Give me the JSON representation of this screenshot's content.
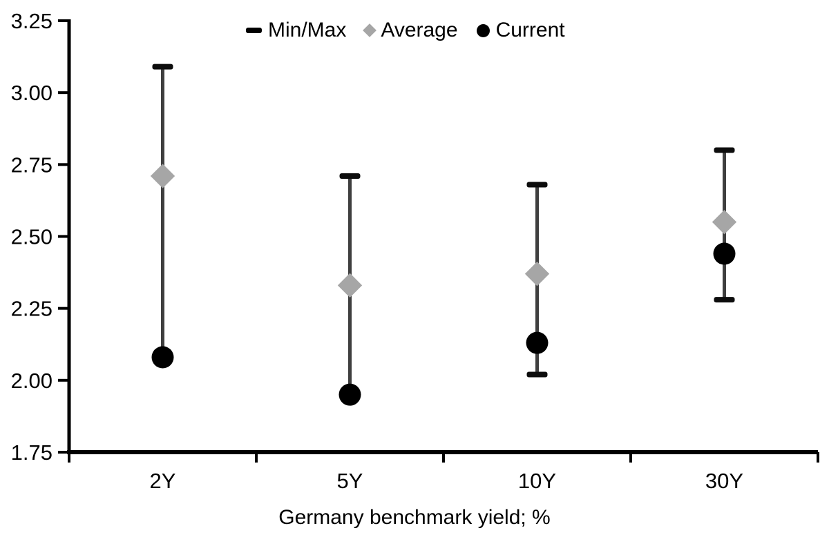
{
  "chart_data": {
    "type": "scatter",
    "variant": "min-max-range-with-markers",
    "title": "",
    "xlabel": "Germany benchmark yield; %",
    "ylabel": "",
    "categories": [
      "2Y",
      "5Y",
      "10Y",
      "30Y"
    ],
    "ylim": [
      1.75,
      3.25
    ],
    "y_ticks": [
      "3.25",
      "3.00",
      "2.75",
      "2.50",
      "2.25",
      "2.00",
      "1.75"
    ],
    "grid": false,
    "legend_position": "top-center",
    "colors": {
      "axis": "#000000",
      "range_line": "#3f3f3f",
      "cap": "#0d0d0d",
      "average": "#a6a6a6",
      "current": "#000000",
      "text": "#000000"
    },
    "series": [
      {
        "name": "Min/Max",
        "marker": "dash",
        "color": "#0d0d0d",
        "max": [
          3.09,
          2.71,
          2.68,
          2.8
        ],
        "min": [
          2.08,
          1.95,
          2.02,
          2.28
        ],
        "min_cap_visible": [
          false,
          false,
          true,
          true
        ]
      },
      {
        "name": "Average",
        "marker": "diamond",
        "color": "#a6a6a6",
        "values": [
          2.71,
          2.33,
          2.37,
          2.55
        ]
      },
      {
        "name": "Current",
        "marker": "circle",
        "color": "#000000",
        "values": [
          2.08,
          1.95,
          2.13,
          2.44
        ]
      }
    ]
  }
}
